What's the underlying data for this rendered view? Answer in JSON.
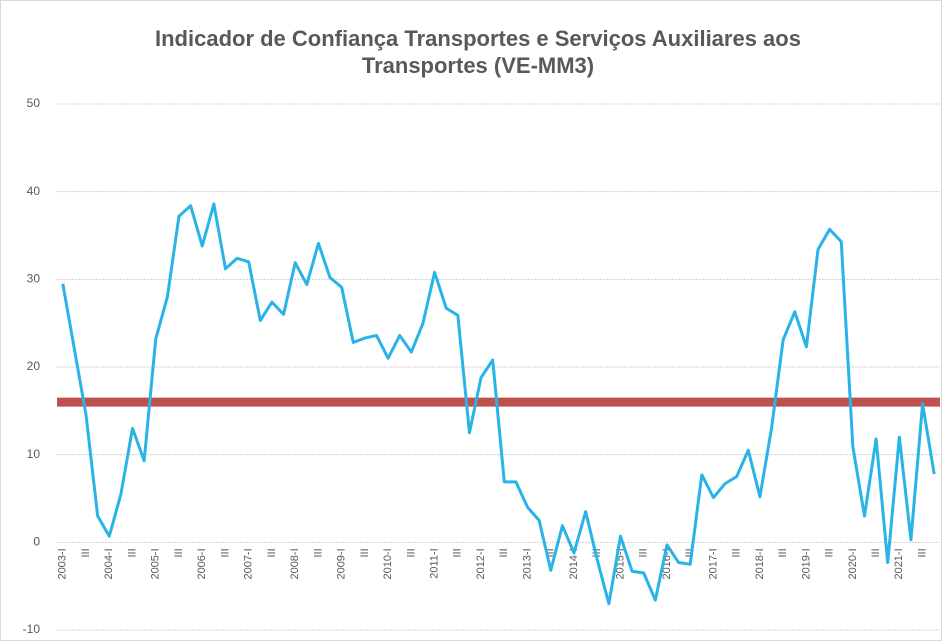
{
  "chart_data": {
    "type": "line",
    "title": [
      "Indicador de Confiança Transportes e Serviços Auxiliares aos",
      "Transportes (VE-MM3)"
    ],
    "categories": [
      "2003-I",
      null,
      "III",
      null,
      "2004-I",
      null,
      "III",
      null,
      "2005-I",
      null,
      "III",
      null,
      "2006-I",
      null,
      "III",
      null,
      "2007-I",
      null,
      "III",
      null,
      "2008-I",
      null,
      "III",
      null,
      "2009-I",
      null,
      "III",
      null,
      "2010-I",
      null,
      "III",
      null,
      "2011-I",
      null,
      "III",
      null,
      "2012-I",
      null,
      "III",
      null,
      "2013-I",
      null,
      "III",
      null,
      "2014-I",
      null,
      "III",
      null,
      "2015-I",
      null,
      "III",
      null,
      "2016-I",
      null,
      "III",
      null,
      "2017-I",
      null,
      "III",
      null,
      "2018-I",
      null,
      "III",
      null,
      "2019-I",
      null,
      "III",
      null,
      "2020-I",
      null,
      "III",
      null,
      "2021-I",
      null,
      "III",
      null
    ],
    "series": [
      {
        "color": "#29b3e6",
        "values": [
          29.5,
          22,
          14.5,
          3,
          0.7,
          5.5,
          13,
          9.3,
          23.2,
          28,
          37.2,
          38.4,
          33.8,
          38.6,
          31.2,
          32.4,
          32,
          25.3,
          27.4,
          26,
          31.9,
          29.4,
          34.1,
          30.2,
          29.1,
          22.8,
          23.3,
          23.6,
          21,
          23.6,
          21.7,
          25,
          30.8,
          26.7,
          25.9,
          12.5,
          18.8,
          20.8,
          6.9,
          6.9,
          4,
          2.5,
          -3.2,
          1.9,
          -1.2,
          3.5,
          -2,
          -7,
          0.7,
          -3.3,
          -3.5,
          -6.6,
          -0.3,
          -2.3,
          -2.5,
          7.7,
          5.1,
          6.7,
          7.5,
          10.5,
          5.2,
          13,
          23.1,
          26.3,
          22.3,
          33.4,
          35.7,
          34.3,
          10.9,
          3,
          11.8,
          -2.3,
          12,
          0.3,
          15.8,
          7.8
        ]
      }
    ],
    "hline": {
      "value": 16,
      "color": "#c0504d"
    },
    "ylim": [
      -10,
      50
    ],
    "yticks": [
      -10,
      0,
      10,
      20,
      30,
      40,
      50
    ],
    "grid": true
  }
}
